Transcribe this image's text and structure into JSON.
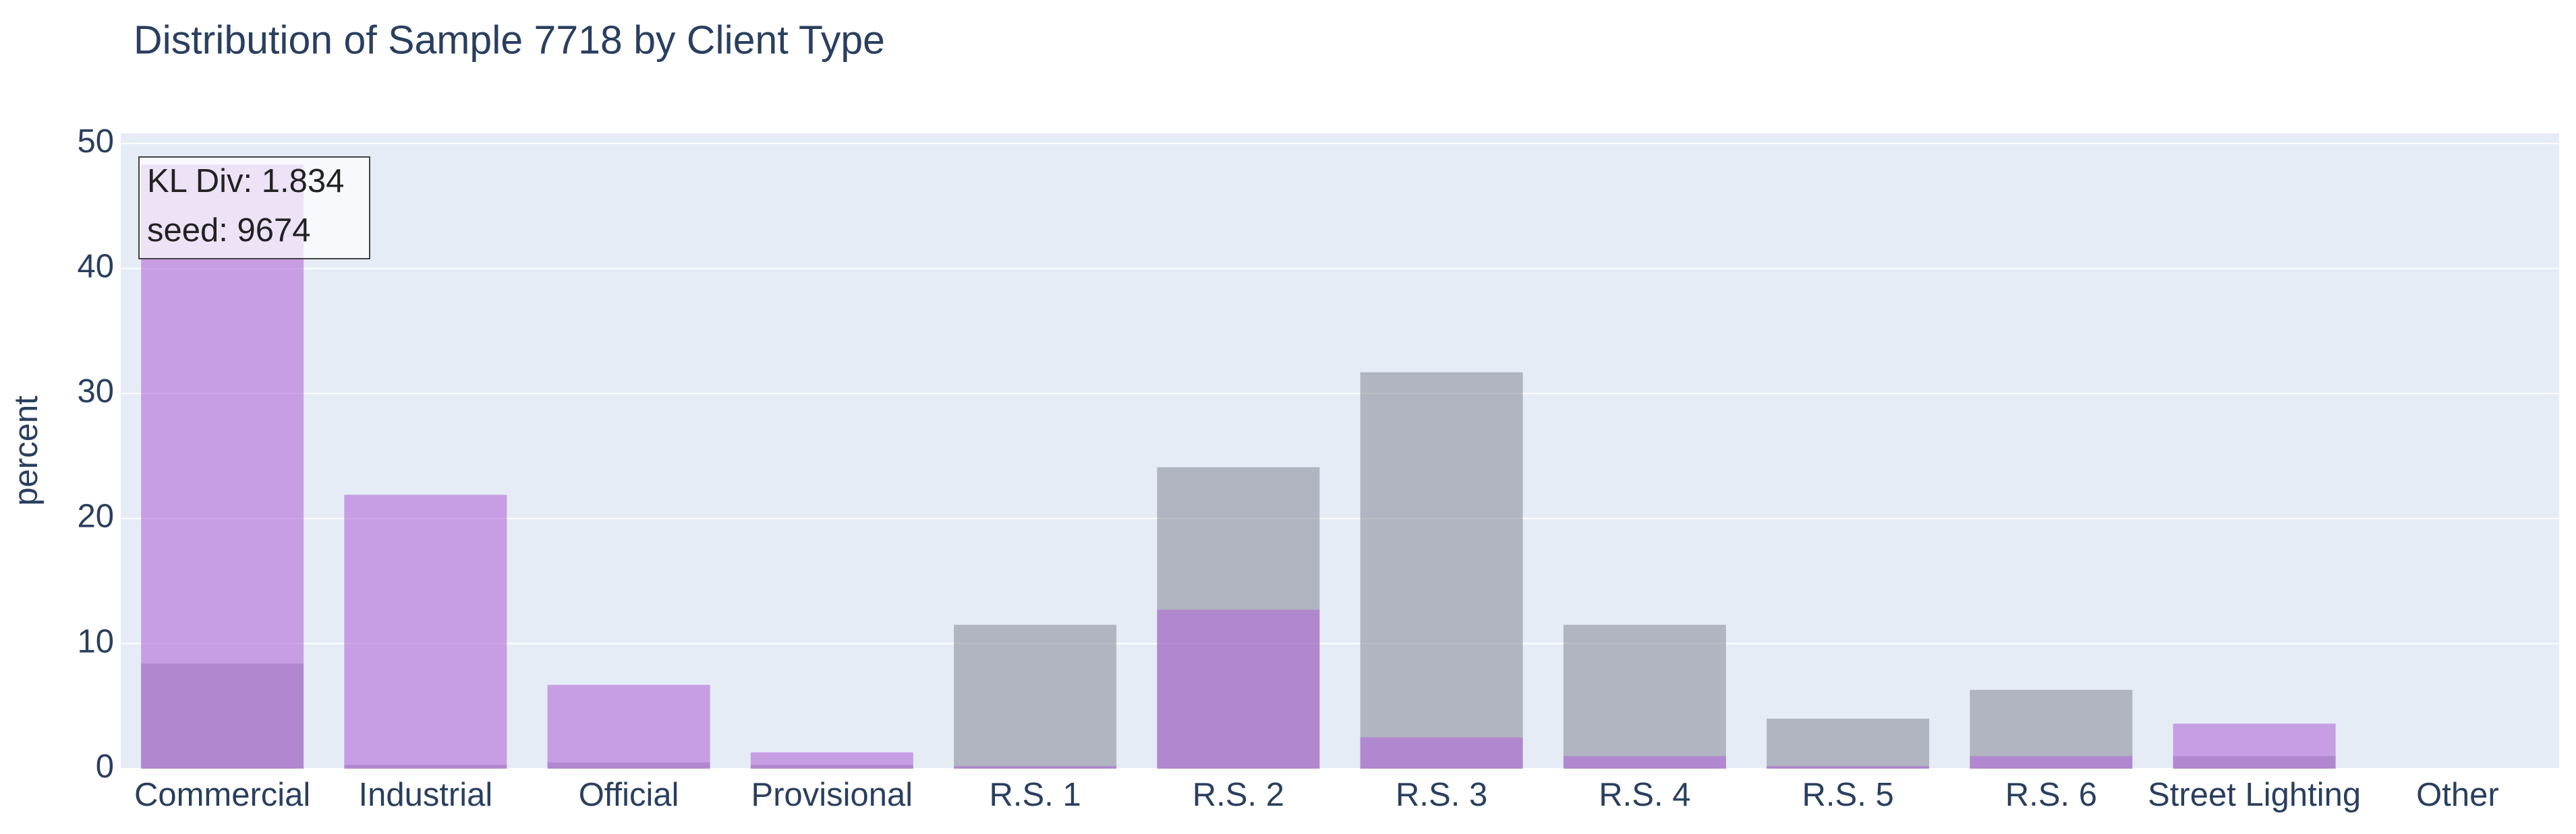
{
  "chart_data": {
    "type": "bar",
    "title": "Distribution of Sample 7718 by Client Type",
    "y_label": "percent",
    "categories": [
      "Commercial",
      "Industrial",
      "Official",
      "Provisional",
      "R.S. 1",
      "R.S. 2",
      "R.S. 3",
      "R.S. 4",
      "R.S. 5",
      "R.S. 6",
      "Street Lighting",
      "Other"
    ],
    "series": [
      {
        "color": "#8c919e",
        "values": [
          8.4,
          0.3,
          0.5,
          0.3,
          11.5,
          24.1,
          31.7,
          11.5,
          4.0,
          6.3,
          1.0,
          0
        ]
      },
      {
        "color": "#b36ad8",
        "values": [
          48.3,
          21.9,
          6.7,
          1.3,
          0.2,
          12.7,
          2.5,
          1.0,
          0.2,
          1.0,
          3.6,
          0
        ]
      }
    ],
    "annotations": [
      "KL Div: 1.834",
      "seed: 9674"
    ],
    "ylim": [
      0,
      50.8
    ],
    "yticks": [
      0,
      10,
      20,
      30,
      40,
      50
    ],
    "grid": true
  }
}
